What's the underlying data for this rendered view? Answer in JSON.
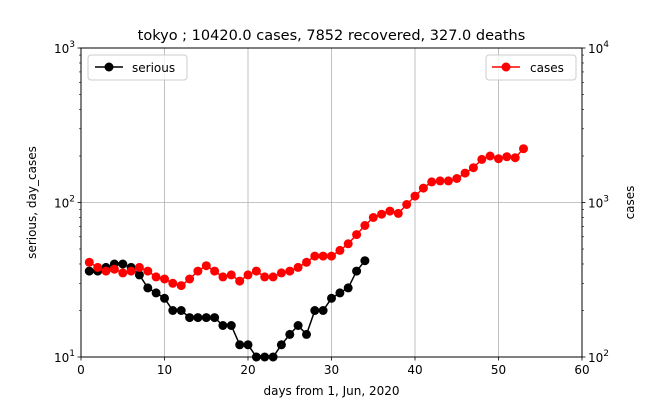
{
  "chart_data": {
    "type": "line",
    "title": "tokyo ; 10420.0 cases, 7852 recovered, 327.0 deaths",
    "xlabel": "days from 1, Jun, 2020",
    "ylabel_left": "serious, day_cases",
    "ylabel_right": "cases",
    "x_ticks": [
      "0",
      "10",
      "20",
      "30",
      "40",
      "50",
      "60"
    ],
    "y_left_ticks": [
      {
        "value": 10,
        "base": "10",
        "exp": "1"
      },
      {
        "value": 100,
        "base": "10",
        "exp": "2"
      },
      {
        "value": 1000,
        "base": "10",
        "exp": "3"
      }
    ],
    "y_right_ticks": [
      {
        "value": 100,
        "base": "10",
        "exp": "2"
      },
      {
        "value": 1000,
        "base": "10",
        "exp": "3"
      },
      {
        "value": 10000,
        "base": "10",
        "exp": "4"
      }
    ],
    "xlim": [
      0,
      60
    ],
    "ylim_left": [
      10,
      1000
    ],
    "ylim_right": [
      100,
      10000
    ],
    "yscale": "log",
    "grid": true,
    "series": [
      {
        "name": "serious",
        "axis": "left",
        "color": "#000000",
        "legend": "upper-left",
        "x": [
          1,
          2,
          3,
          4,
          5,
          6,
          7,
          8,
          9,
          10,
          11,
          12,
          13,
          14,
          15,
          16,
          17,
          18,
          19,
          20,
          21,
          22,
          23,
          24,
          25,
          26,
          27,
          28,
          29,
          30,
          31,
          32,
          33,
          34
        ],
        "y": [
          36,
          36,
          38,
          40,
          40,
          38,
          34,
          28,
          26,
          24,
          20,
          20,
          18,
          18,
          18,
          18,
          16,
          16,
          12,
          12,
          10,
          10,
          10,
          12,
          14,
          16,
          14,
          20,
          20,
          24,
          26,
          28,
          36,
          42
        ]
      },
      {
        "name": "cases",
        "axis": "right",
        "color": "#ff0000",
        "legend": "upper-right",
        "x": [
          1,
          2,
          3,
          4,
          5,
          6,
          7,
          8,
          9,
          10,
          11,
          12,
          13,
          14,
          15,
          16,
          17,
          18,
          19,
          20,
          21,
          22,
          23,
          24,
          25,
          26,
          27,
          28,
          29,
          30,
          31,
          32,
          33,
          34,
          35,
          36,
          37,
          38,
          39,
          40,
          41,
          42,
          43,
          44,
          45,
          46,
          47,
          48,
          49,
          50,
          51,
          52,
          53
        ],
        "y": [
          410,
          380,
          360,
          370,
          350,
          360,
          380,
          360,
          330,
          320,
          300,
          290,
          320,
          360,
          390,
          360,
          330,
          340,
          310,
          340,
          360,
          330,
          330,
          350,
          360,
          380,
          410,
          450,
          450,
          450,
          490,
          540,
          620,
          710,
          800,
          840,
          880,
          850,
          970,
          1100,
          1240,
          1360,
          1380,
          1380,
          1430,
          1550,
          1680,
          1900,
          2000,
          1920,
          1980,
          1950,
          2230
        ]
      }
    ]
  }
}
